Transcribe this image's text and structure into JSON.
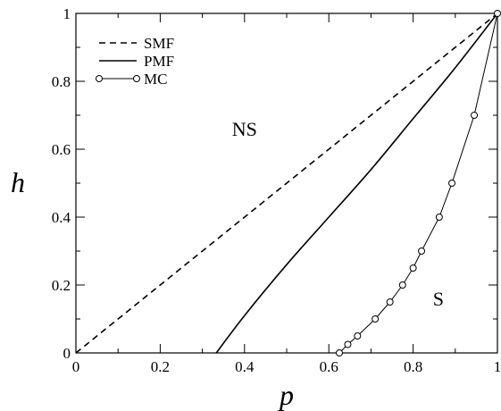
{
  "chart_data": {
    "type": "line",
    "xlabel": "p",
    "ylabel": "h",
    "xlim": [
      0,
      1
    ],
    "ylim": [
      0,
      1
    ],
    "x_ticks": [
      0,
      0.2,
      0.4,
      0.6,
      0.8,
      1
    ],
    "x_tick_labels": [
      "0",
      "0.2",
      "0.4",
      "0.6",
      "0.8",
      "1"
    ],
    "y_ticks": [
      0,
      0.2,
      0.4,
      0.6,
      0.8,
      1
    ],
    "y_tick_labels": [
      "0",
      "0.2",
      "0.4",
      "0.6",
      "0.8",
      "1"
    ],
    "grid": false,
    "legend_position": "top-left",
    "series": [
      {
        "name": "SMF",
        "style": "dashed",
        "color": "#000000",
        "x": [
          0,
          1
        ],
        "y": [
          0,
          1
        ]
      },
      {
        "name": "PMF",
        "style": "solid",
        "color": "#000000",
        "x": [
          0.333,
          0.4,
          0.5,
          0.6,
          0.7,
          0.8,
          0.9,
          1.0
        ],
        "y": [
          0,
          0.11,
          0.26,
          0.4,
          0.54,
          0.69,
          0.84,
          1.0
        ]
      },
      {
        "name": "MC",
        "style": "solid-with-circle-markers",
        "color": "#000000",
        "x": [
          0.625,
          0.645,
          0.668,
          0.71,
          0.745,
          0.775,
          0.8,
          0.82,
          0.862,
          0.892,
          0.945,
          1.0
        ],
        "y": [
          0,
          0.025,
          0.05,
          0.1,
          0.15,
          0.2,
          0.25,
          0.3,
          0.4,
          0.5,
          0.7,
          1.0
        ]
      }
    ],
    "annotations": [
      {
        "text": "NS",
        "x": 0.4,
        "y": 0.64
      },
      {
        "text": "S",
        "x": 0.86,
        "y": 0.14
      }
    ]
  }
}
